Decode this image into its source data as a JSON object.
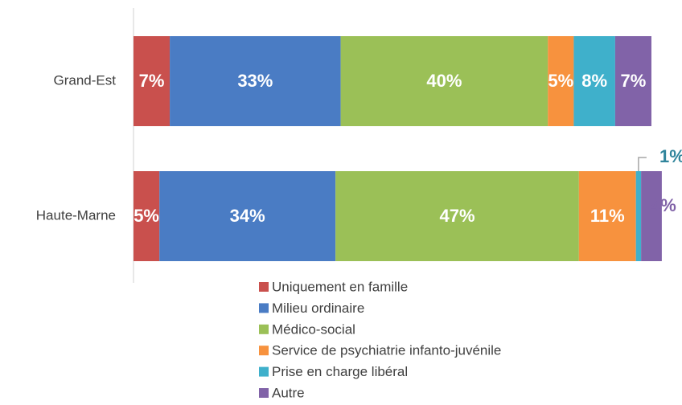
{
  "chart_data": {
    "type": "stacked_bar_horizontal",
    "categories": [
      "Grand-Est",
      "Haute-Marne"
    ],
    "xlim": [
      0,
      100
    ],
    "series": [
      {
        "name": "Uniquement en famille",
        "color": "#c9504d",
        "values": [
          7,
          5
        ],
        "value_labels": [
          "7%",
          "5%"
        ]
      },
      {
        "name": "Milieu ordinaire",
        "color": "#4a7cc4",
        "values": [
          33,
          34
        ],
        "value_labels": [
          "33%",
          "34%"
        ]
      },
      {
        "name": "Médico-social",
        "color": "#9bc057",
        "values": [
          40,
          47
        ],
        "value_labels": [
          "40%",
          "47%"
        ]
      },
      {
        "name": "Service de psychiatrie infanto-juvénile",
        "color": "#f7923e",
        "values": [
          5,
          11
        ],
        "value_labels": [
          "5%",
          "11%"
        ]
      },
      {
        "name": "Prise en charge libéral",
        "color": "#3fb0cb",
        "values": [
          8,
          1
        ],
        "value_labels": [
          "8%",
          "1%"
        ]
      },
      {
        "name": "Autre",
        "color": "#8163a8",
        "values": [
          7,
          4
        ],
        "value_labels": [
          "7%",
          "4%"
        ]
      }
    ]
  }
}
